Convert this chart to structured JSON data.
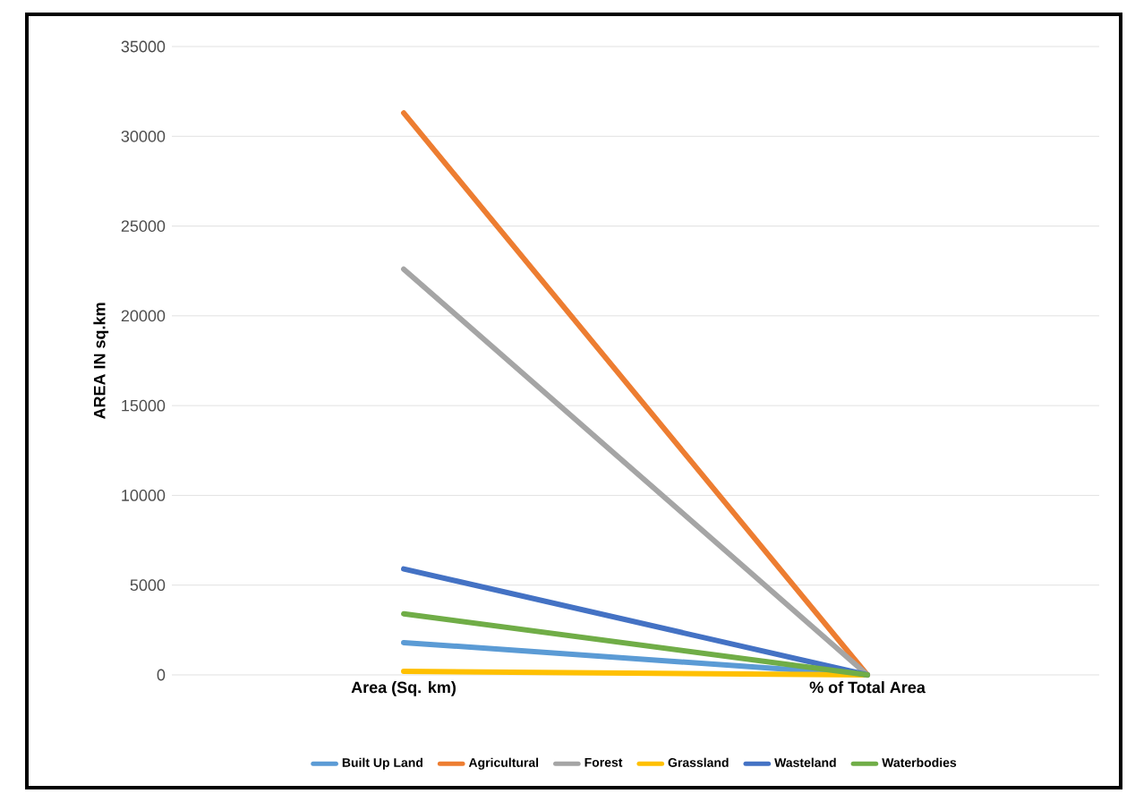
{
  "chart_data": {
    "type": "line",
    "ylabel": "AREA IN sq.km",
    "categories": [
      "Area (Sq. km)",
      "% of Total Area"
    ],
    "series": [
      {
        "name": "Built Up Land",
        "color": "#5b9bd5",
        "values": [
          1800,
          0
        ]
      },
      {
        "name": "Agricultural",
        "color": "#ed7d31",
        "values": [
          31300,
          0
        ]
      },
      {
        "name": "Forest",
        "color": "#a5a5a5",
        "values": [
          22600,
          0
        ]
      },
      {
        "name": "Grassland",
        "color": "#ffc000",
        "values": [
          200,
          0
        ]
      },
      {
        "name": "Wasteland",
        "color": "#4472c4",
        "values": [
          5900,
          0
        ]
      },
      {
        "name": "Waterbodies",
        "color": "#70ad47",
        "values": [
          3400,
          0
        ]
      }
    ],
    "ylim": [
      0,
      35000
    ],
    "yticks": [
      0,
      5000,
      10000,
      15000,
      20000,
      25000,
      30000,
      35000
    ],
    "grid": "y",
    "legend": "bottom",
    "marker": "none",
    "line_style": "solid"
  }
}
